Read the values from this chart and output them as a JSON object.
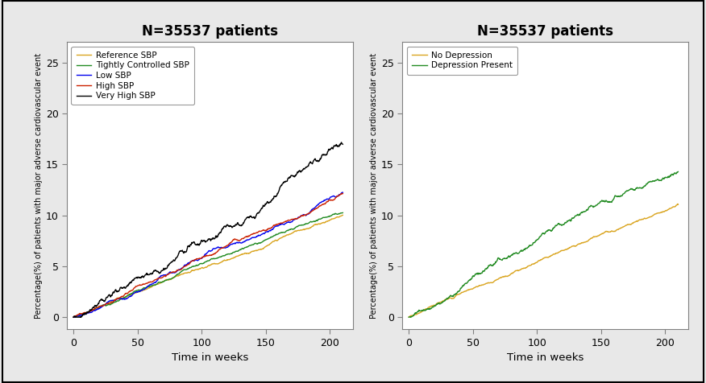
{
  "title": "N=35537 patients",
  "title_fontsize": 12,
  "title_fontweight": "bold",
  "xlabel": "Time in weeks",
  "ylabel": "Percentage(%) of patients with major adverse cardiovascular event",
  "xlim": [
    -5,
    218
  ],
  "ylim": [
    -1.2,
    27
  ],
  "yticks": [
    0,
    5,
    10,
    15,
    20,
    25
  ],
  "xticks": [
    0,
    50,
    100,
    150,
    200
  ],
  "bg_color": "#e8e8e8",
  "plot_bg": "#ffffff",
  "panel1": {
    "lines": [
      {
        "label": "Reference SBP",
        "color": "#DAA520",
        "end_y": 11.0,
        "power": 1.0
      },
      {
        "label": "Tightly Controlled SBP",
        "color": "#228B22",
        "end_y": 10.5,
        "power": 1.0
      },
      {
        "label": "Low SBP",
        "color": "#0000EE",
        "end_y": 12.3,
        "power": 1.0
      },
      {
        "label": "High SBP",
        "color": "#CC2200",
        "end_y": 12.0,
        "power": 1.0
      },
      {
        "label": "Very High SBP",
        "color": "#000000",
        "end_y": 15.3,
        "power": 1.0
      }
    ]
  },
  "panel2": {
    "lines": [
      {
        "label": "No Depression",
        "color": "#DAA520",
        "end_y": 11.0,
        "power": 1.0
      },
      {
        "label": "Depression Present",
        "color": "#228B22",
        "end_y": 13.2,
        "power": 1.0
      }
    ]
  }
}
